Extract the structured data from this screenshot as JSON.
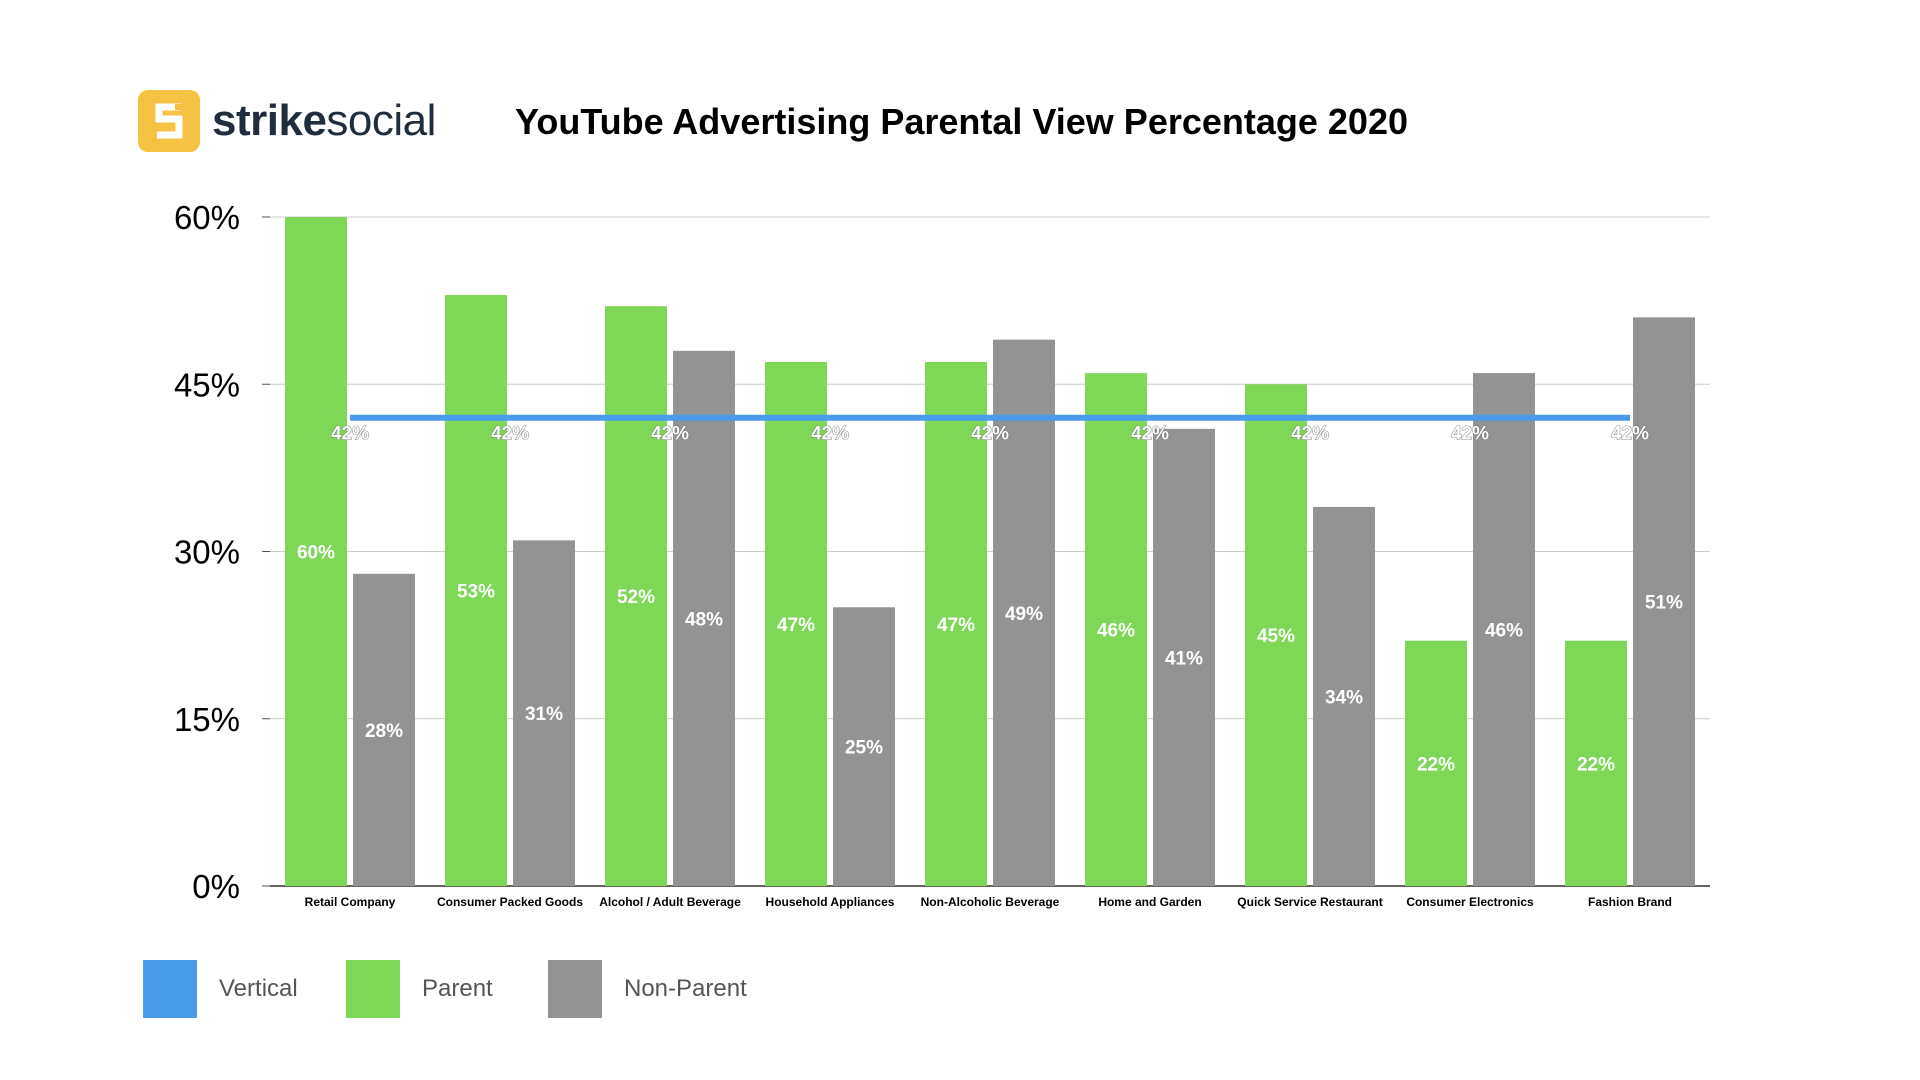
{
  "brand": {
    "name_bold": "strike",
    "name_regular": "social",
    "logo_letter": "S"
  },
  "colors": {
    "vertical": "#4a9bea",
    "parent": "#7ed756",
    "non_parent": "#939393",
    "logo": "#f6c244"
  },
  "chart_data": {
    "type": "bar",
    "title": "YouTube Advertising Parental View Percentage 2020",
    "categories": [
      "Retail Company",
      "Consumer Packed Goods",
      "Alcohol / Adult Beverage",
      "Household Appliances",
      "Non-Alcoholic Beverage",
      "Home and Garden",
      "Quick Service Restaurant",
      "Consumer Electronics",
      "Fashion Brand"
    ],
    "series": [
      {
        "name": "Parent",
        "type": "bar",
        "values": [
          60,
          53,
          52,
          47,
          47,
          46,
          45,
          22,
          22
        ],
        "labels": [
          "60%",
          "53%",
          "52%",
          "47%",
          "47%",
          "46%",
          "45%",
          "22%",
          "22%"
        ]
      },
      {
        "name": "Non-Parent",
        "type": "bar",
        "values": [
          28,
          31,
          48,
          25,
          49,
          41,
          34,
          46,
          51
        ],
        "labels": [
          "28%",
          "31%",
          "48%",
          "25%",
          "49%",
          "41%",
          "34%",
          "46%",
          "51%"
        ]
      },
      {
        "name": "Vertical",
        "type": "line",
        "values": [
          42,
          42,
          42,
          42,
          42,
          42,
          42,
          42,
          42
        ],
        "labels": [
          "42%",
          "42%",
          "42%",
          "42%",
          "42%",
          "42%",
          "42%",
          "42%",
          "42%"
        ]
      }
    ],
    "yticks": [
      "0%",
      "15%",
      "30%",
      "45%",
      "60%"
    ],
    "ytick_values": [
      0,
      15,
      30,
      45,
      60
    ],
    "ylim": [
      0,
      60
    ],
    "xlabel": "",
    "ylabel": "",
    "grid": true,
    "legend": [
      "Vertical",
      "Parent",
      "Non-Parent"
    ],
    "legend_position": "bottom-left"
  }
}
